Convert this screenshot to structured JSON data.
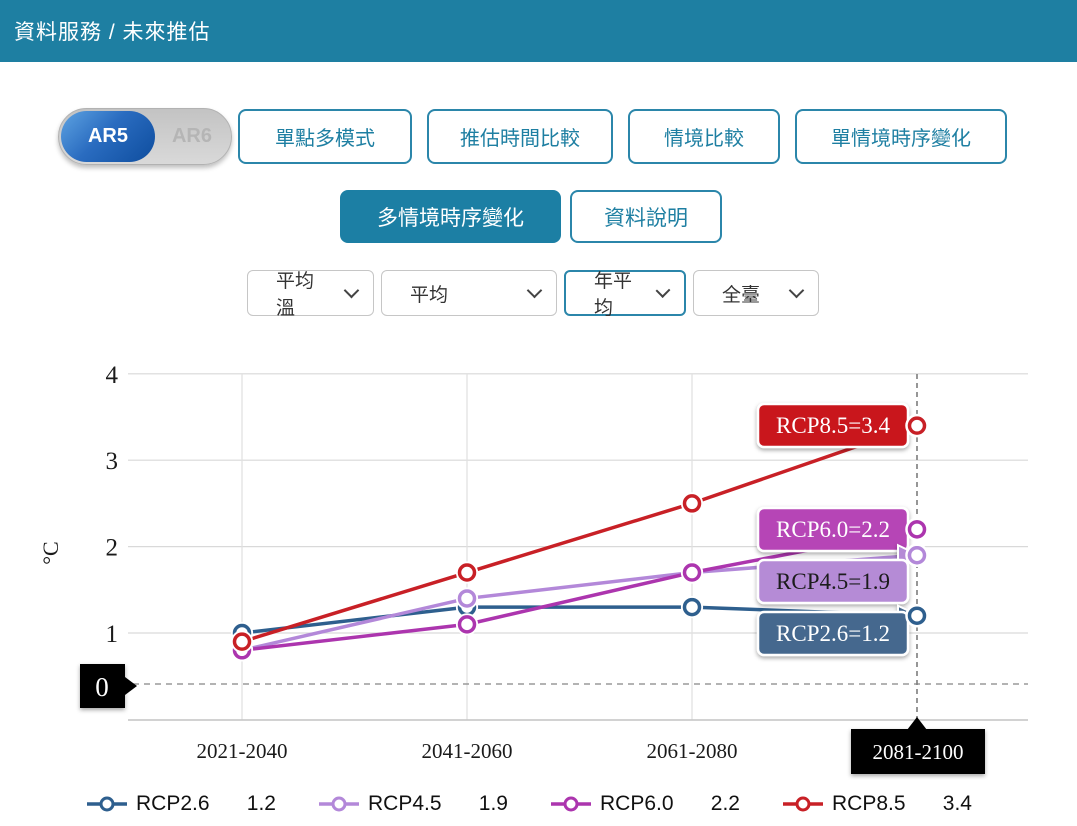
{
  "header": {
    "breadcrumb": "資料服務 / 未來推估"
  },
  "toggle": {
    "options": [
      "AR5",
      "AR6"
    ],
    "selected": "AR5"
  },
  "nav_buttons": [
    "單點多模式",
    "推估時間比較",
    "情境比較",
    "單情境時序變化"
  ],
  "sub_buttons": [
    {
      "label": "多情境時序變化",
      "active": true
    },
    {
      "label": "資料說明",
      "active": false
    }
  ],
  "filters": [
    {
      "value": "平均溫",
      "focused": false
    },
    {
      "value": "平均",
      "focused": false
    },
    {
      "value": "年平均",
      "focused": true
    },
    {
      "value": "全臺",
      "focused": false
    }
  ],
  "chart_data": {
    "type": "line",
    "title": "",
    "ylabel": "°C",
    "categories": [
      "2021-2040",
      "2041-2060",
      "2061-2080",
      "2081-2100"
    ],
    "highlight_category": "2081-2100",
    "yticks": [
      1,
      2,
      3,
      4
    ],
    "ylim": [
      0,
      4
    ],
    "zero_label": "0",
    "grid": true,
    "series": [
      {
        "name": "RCP2.6",
        "color": "#2E5F8E",
        "values": [
          1.0,
          1.3,
          1.3,
          1.2
        ],
        "end_label": {
          "text": "RCP2.6=1.2",
          "bg": "#44688E",
          "text_color": "#ffffff"
        },
        "legend_value": "1.2"
      },
      {
        "name": "RCP4.5",
        "color": "#B388D9",
        "values": [
          0.8,
          1.4,
          1.7,
          1.9
        ],
        "end_label": {
          "text": "RCP4.5=1.9",
          "bg": "#B58BD6",
          "text_color": "#1a1a1a"
        },
        "legend_value": "1.9"
      },
      {
        "name": "RCP6.0",
        "color": "#AC35AE",
        "values": [
          0.8,
          1.1,
          1.7,
          2.2
        ],
        "end_label": {
          "text": "RCP6.0=2.2",
          "bg": "#B644B6",
          "text_color": "#ffffff"
        },
        "legend_value": "2.2"
      },
      {
        "name": "RCP8.5",
        "color": "#C82026",
        "values": [
          0.9,
          1.7,
          2.5,
          3.4
        ],
        "end_label": {
          "text": "RCP8.5=3.4",
          "bg": "#C9121F",
          "text_color": "#ffffff"
        },
        "legend_value": "3.4"
      }
    ],
    "legend_position": "bottom"
  }
}
